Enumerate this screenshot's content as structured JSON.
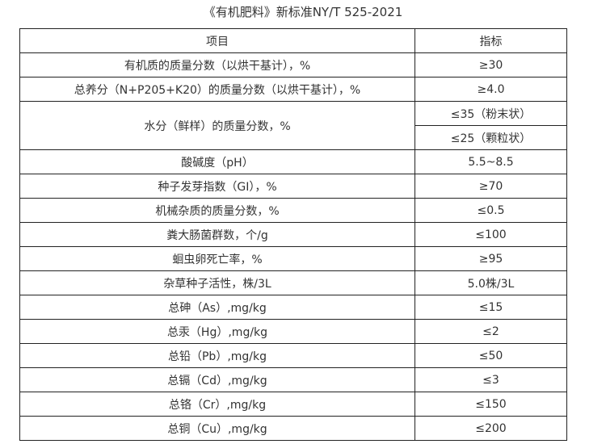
{
  "title": "《有机肥料》新标准NY/T 525-2021",
  "header": {
    "item": "项目",
    "spec": "指标"
  },
  "rows": [
    {
      "item": "有机质的质量分数（以烘干基计），%",
      "spec": "≥30"
    },
    {
      "item": "总养分（N+P205+K20）的质量分数（以烘干基计），%",
      "spec": "≥4.0"
    },
    {
      "item": "水分（鲜样）的质量分数，%",
      "spec": "≤35（粉末状）",
      "spec2": "≤25（颗粒状）"
    },
    {
      "item": "酸碱度（pH）",
      "spec": "5.5~8.5"
    },
    {
      "item": "种子发芽指数（GI），%",
      "spec": "≥70"
    },
    {
      "item": "机械杂质的质量分数，%",
      "spec": "≤0.5"
    },
    {
      "item": "粪大肠菌群数，个/g",
      "spec": "≤100"
    },
    {
      "item": "蛔虫卵死亡率，%",
      "spec": "≥95"
    },
    {
      "item": "杂草种子活性，株/3L",
      "spec": "5.0株/3L"
    },
    {
      "item": "总砷（As）,mg/kg",
      "spec": "≤15"
    },
    {
      "item": "总汞（Hg）,mg/kg",
      "spec": "≤2"
    },
    {
      "item": "总铅（Pb）,mg/kg",
      "spec": "≤50"
    },
    {
      "item": "总镉（Cd）,mg/kg",
      "spec": "≤3"
    },
    {
      "item": "总铬（Cr）,mg/kg",
      "spec": "≤150"
    },
    {
      "item": "总铜（Cu）,mg/kg",
      "spec": "≤200"
    }
  ]
}
